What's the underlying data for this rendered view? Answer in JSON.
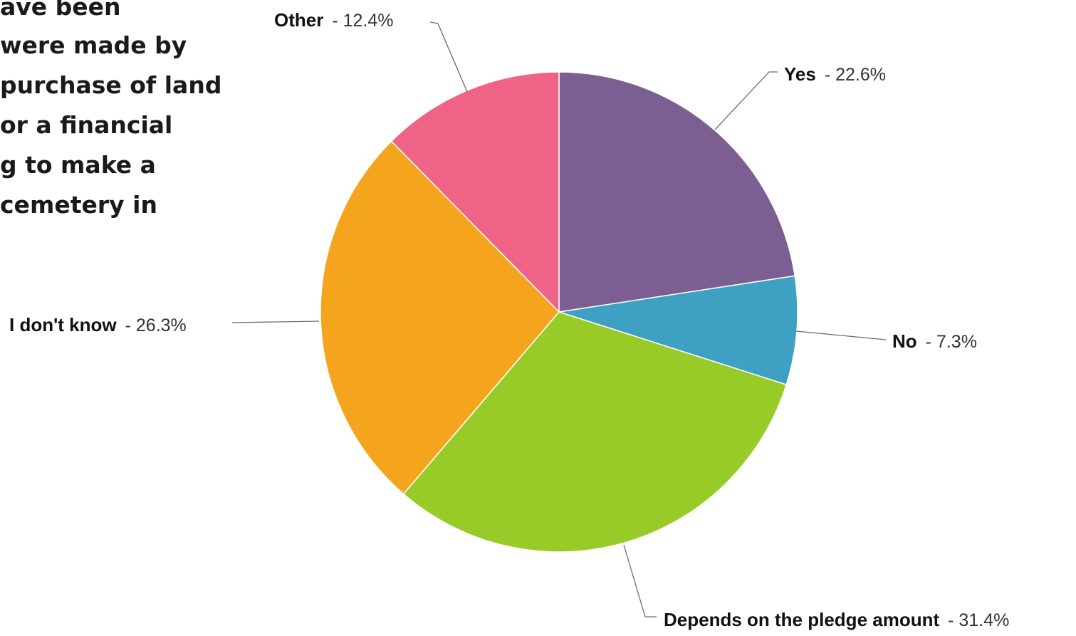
{
  "question_lines": [
    "ave been",
    "were made by",
    "purchase of land",
    "or a financial",
    "g to make a",
    "cemetery in"
  ],
  "chart_data": {
    "type": "pie",
    "categories": [
      "Yes",
      "No",
      "Depends on the pledge amount",
      "I don't know",
      "Other"
    ],
    "values": [
      22.6,
      7.3,
      31.4,
      26.3,
      12.4
    ],
    "value_labels": [
      "- 22.6%",
      "- 7.3%",
      "- 31.4%",
      "- 26.3%",
      "- 12.4%"
    ],
    "colors": [
      "#7b5f92",
      "#3ea0c3",
      "#99cb28",
      "#f4a51d",
      "#ee6386"
    ],
    "start_angle": "12 o'clock",
    "direction": "clockwise"
  }
}
